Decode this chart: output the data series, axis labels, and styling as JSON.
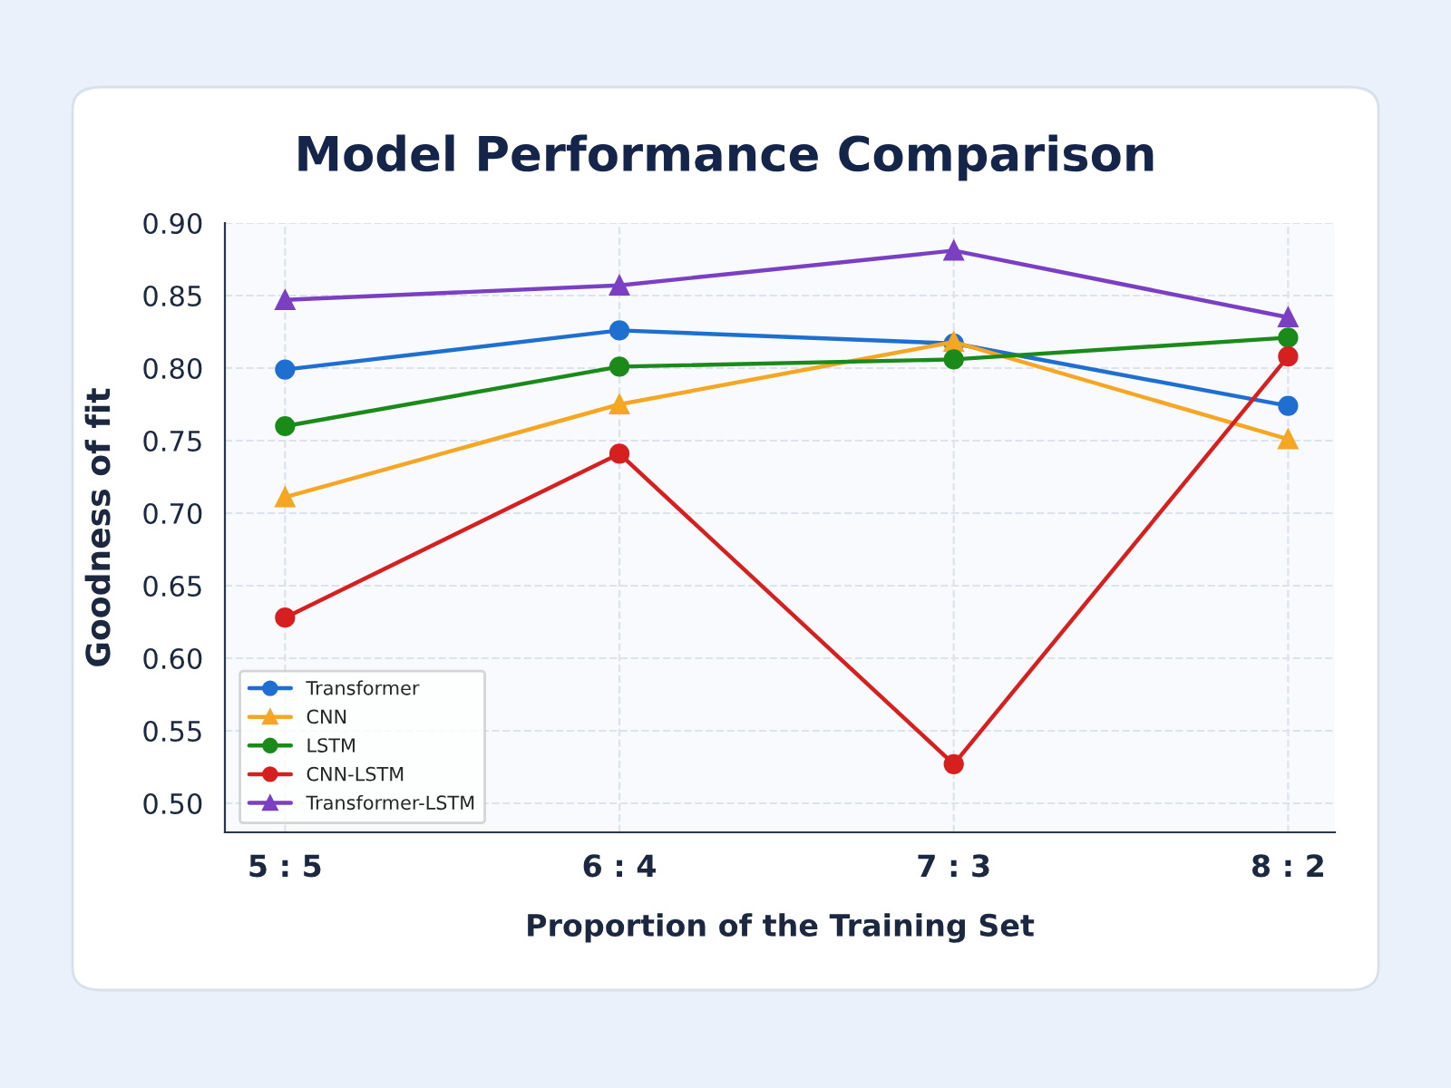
{
  "chart_data": {
    "type": "line",
    "title": "Model Performance Comparison",
    "xlabel": "Proportion of the Training Set",
    "ylabel": "Goodness of fit",
    "categories": [
      "5 : 5",
      "6 : 4",
      "7 : 3",
      "8 : 2"
    ],
    "series": [
      {
        "name": "Transformer",
        "color": "#1f6fd1",
        "marker": "circle",
        "values": [
          0.799,
          0.826,
          0.817,
          0.774
        ]
      },
      {
        "name": "CNN",
        "color": "#f5a623",
        "marker": "triangle",
        "values": [
          0.711,
          0.775,
          0.818,
          0.751
        ]
      },
      {
        "name": "LSTM",
        "color": "#1a8a1a",
        "marker": "circle",
        "values": [
          0.76,
          0.801,
          0.806,
          0.821
        ]
      },
      {
        "name": "CNN-LSTM",
        "color": "#d62020",
        "marker": "circle",
        "values": [
          0.628,
          0.741,
          0.527,
          0.808
        ]
      },
      {
        "name": "Transformer-LSTM",
        "color": "#7b3fc4",
        "marker": "triangle",
        "values": [
          0.847,
          0.857,
          0.881,
          0.835
        ]
      }
    ],
    "ylim": [
      0.48,
      0.9
    ],
    "yticks": [
      {
        "value": 0.5,
        "label": "0.50"
      },
      {
        "value": 0.55,
        "label": "0.55"
      },
      {
        "value": 0.6,
        "label": "0.60"
      },
      {
        "value": 0.65,
        "label": "0.65"
      },
      {
        "value": 0.7,
        "label": "0.70"
      },
      {
        "value": 0.75,
        "label": "0.75"
      },
      {
        "value": 0.8,
        "label": "0.80"
      },
      {
        "value": 0.85,
        "label": "0.85"
      },
      {
        "value": 0.9,
        "label": "0.90"
      }
    ],
    "grid": true,
    "legend": "bottom left",
    "line_style": "solid"
  }
}
